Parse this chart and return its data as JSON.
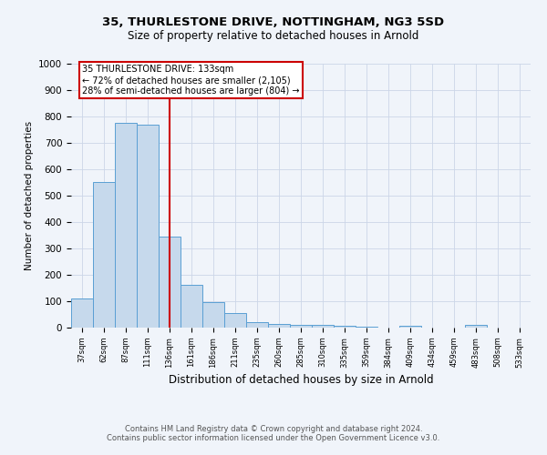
{
  "title1": "35, THURLESTONE DRIVE, NOTTINGHAM, NG3 5SD",
  "title2": "Size of property relative to detached houses in Arnold",
  "xlabel": "Distribution of detached houses by size in Arnold",
  "ylabel": "Number of detached properties",
  "bin_labels": [
    "37sqm",
    "62sqm",
    "87sqm",
    "111sqm",
    "136sqm",
    "161sqm",
    "186sqm",
    "211sqm",
    "235sqm",
    "260sqm",
    "285sqm",
    "310sqm",
    "335sqm",
    "359sqm",
    "384sqm",
    "409sqm",
    "434sqm",
    "459sqm",
    "483sqm",
    "508sqm",
    "533sqm"
  ],
  "bar_heights": [
    110,
    553,
    775,
    770,
    345,
    163,
    97,
    54,
    20,
    13,
    10,
    9,
    6,
    4,
    0,
    8,
    0,
    0,
    9,
    0,
    0
  ],
  "bar_color": "#c6d9ec",
  "bar_edge_color": "#5a9fd4",
  "vline_color": "#cc0000",
  "vline_x": 4,
  "annotation_text": "35 THURLESTONE DRIVE: 133sqm\n← 72% of detached houses are smaller (2,105)\n28% of semi-detached houses are larger (804) →",
  "annotation_box_color": "#ffffff",
  "annotation_box_edge_color": "#cc0000",
  "ylim": [
    0,
    1000
  ],
  "yticks": [
    0,
    100,
    200,
    300,
    400,
    500,
    600,
    700,
    800,
    900,
    1000
  ],
  "footer1": "Contains HM Land Registry data © Crown copyright and database right 2024.",
  "footer2": "Contains public sector information licensed under the Open Government Licence v3.0.",
  "title1_fontsize": 9.5,
  "title2_fontsize": 8.5,
  "grid_color": "#ccd6e8",
  "bg_color": "#f0f4fa"
}
